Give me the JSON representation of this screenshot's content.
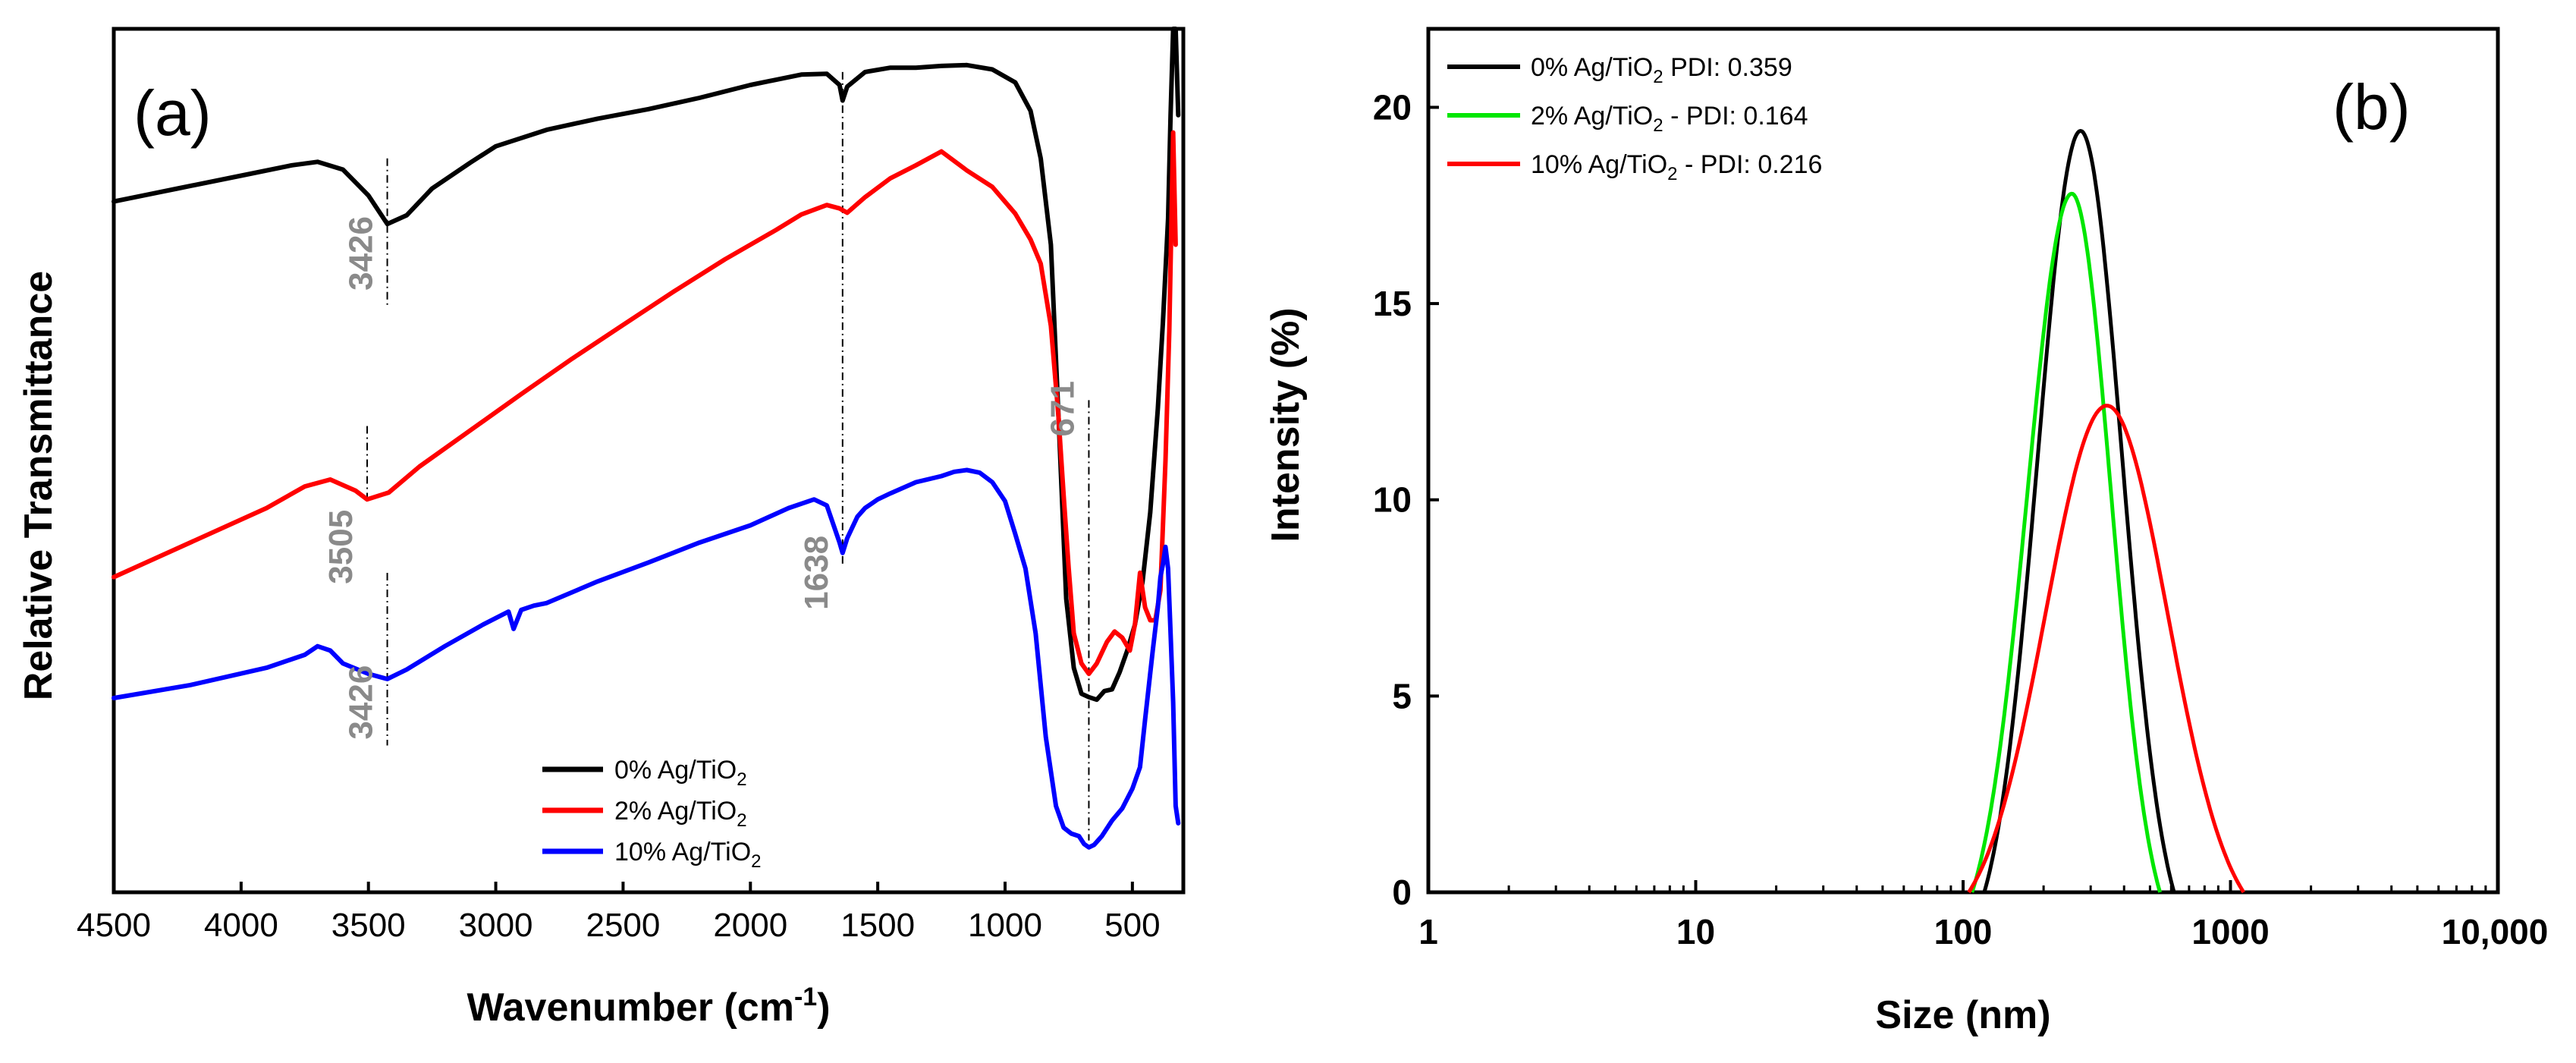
{
  "chart_data": [
    {
      "type": "line",
      "panel_label": "(a)",
      "xlabel_main": "Wavenumber (cm",
      "xlabel_sup": "-1",
      "xlabel_end": ")",
      "ylabel": "Relative Transmittance",
      "xlim": [
        4500,
        300
      ],
      "x_reversed": true,
      "ylim": [
        0,
        100
      ],
      "x_ticks": [
        4500,
        4000,
        3500,
        3000,
        2500,
        2000,
        1500,
        1000,
        500
      ],
      "x_tick_labels": [
        "4500",
        "4000",
        "3500",
        "3000",
        "2500",
        "2000",
        "1500",
        "1000",
        "500"
      ],
      "y_ticks_shown": false,
      "legend_position": "bottom-right",
      "annotations": [
        {
          "text": "3426",
          "x": 3426,
          "y": 74
        },
        {
          "text": "3505",
          "x": 3505,
          "y": 40
        },
        {
          "text": "3426",
          "x": 3426,
          "y": 22
        },
        {
          "text": "1638",
          "x": 1638,
          "y": 37
        },
        {
          "text": "671",
          "x": 671,
          "y": 56
        }
      ],
      "guide_lines": [
        {
          "x": 3426,
          "y_from": 85,
          "y_to": 68
        },
        {
          "x": 3505,
          "y_from": 54,
          "y_to": 45
        },
        {
          "x": 3426,
          "y_from": 37,
          "y_to": 17
        },
        {
          "x": 1638,
          "y_from": 95,
          "y_to": 38
        },
        {
          "x": 671,
          "y_from": 57,
          "y_to": 6
        }
      ],
      "series": [
        {
          "name": "0% Ag/TiO",
          "sub": "2",
          "color": "#000000",
          "x": [
            4500,
            4250,
            4000,
            3800,
            3700,
            3600,
            3500,
            3426,
            3350,
            3250,
            3100,
            3000,
            2800,
            2600,
            2400,
            2200,
            2000,
            1800,
            1700,
            1650,
            1638,
            1620,
            1550,
            1450,
            1350,
            1250,
            1150,
            1050,
            960,
            900,
            860,
            820,
            790,
            760,
            730,
            700,
            671,
            640,
            610,
            580,
            550,
            520,
            490,
            460,
            430,
            400,
            380,
            360,
            350,
            340,
            330,
            320
          ],
          "y": [
            80,
            81.5,
            83,
            84.2,
            84.6,
            83.7,
            80.7,
            77.4,
            78.4,
            81.5,
            84.5,
            86.4,
            88.3,
            89.6,
            90.7,
            92,
            93.5,
            94.7,
            94.8,
            93.5,
            91.7,
            93.3,
            95,
            95.5,
            95.5,
            95.7,
            95.8,
            95.3,
            93.8,
            90.5,
            85,
            75,
            55,
            34,
            26,
            23,
            22.6,
            22.3,
            23.3,
            23.5,
            25.5,
            28,
            31,
            36,
            44,
            56,
            66,
            78,
            90,
            100,
            100,
            90
          ]
        },
        {
          "name": "2% Ag/TiO",
          "sub": "2",
          "color": "#ff0000",
          "x": [
            4500,
            4200,
            3900,
            3750,
            3650,
            3550,
            3505,
            3420,
            3300,
            3100,
            2900,
            2700,
            2500,
            2300,
            2100,
            1900,
            1800,
            1700,
            1650,
            1638,
            1620,
            1550,
            1450,
            1350,
            1250,
            1150,
            1050,
            960,
            900,
            860,
            820,
            790,
            770,
            750,
            730,
            700,
            671,
            640,
            600,
            570,
            540,
            510,
            490,
            470,
            450,
            430,
            410,
            390,
            370,
            355,
            340,
            330
          ],
          "y": [
            36.5,
            40.5,
            44.5,
            47,
            47.8,
            46.5,
            45.5,
            46.3,
            49.3,
            53.5,
            57.7,
            61.8,
            65.7,
            69.6,
            73.3,
            76.7,
            78.5,
            79.6,
            79.2,
            79,
            78.7,
            80.5,
            82.7,
            84.2,
            85.8,
            83.6,
            81.7,
            78.6,
            75.6,
            72.8,
            65.6,
            55,
            46,
            37.5,
            30,
            26.5,
            25.3,
            26.5,
            29,
            30.2,
            29.5,
            28,
            31,
            37,
            33,
            31.5,
            31.5,
            35,
            50,
            65,
            88,
            75
          ]
        },
        {
          "name": "10% Ag/TiO",
          "sub": "2",
          "color": "#0000ff",
          "x": [
            4500,
            4200,
            3900,
            3750,
            3700,
            3650,
            3600,
            3500,
            3426,
            3350,
            3200,
            3050,
            2950,
            2930,
            2900,
            2850,
            2800,
            2600,
            2400,
            2200,
            2000,
            1850,
            1750,
            1700,
            1650,
            1638,
            1620,
            1580,
            1550,
            1500,
            1450,
            1350,
            1250,
            1200,
            1150,
            1100,
            1050,
            1000,
            960,
            920,
            880,
            840,
            800,
            770,
            740,
            710,
            690,
            671,
            650,
            620,
            580,
            540,
            500,
            470,
            450,
            420,
            400,
            390,
            380,
            370,
            360,
            350,
            340,
            330,
            320
          ],
          "y": [
            22.5,
            24,
            26,
            27.5,
            28.5,
            28,
            26.5,
            25.3,
            24.7,
            25.8,
            28.5,
            31,
            32.5,
            30.5,
            32.7,
            33.2,
            33.5,
            36,
            38.2,
            40.5,
            42.5,
            44.5,
            45.5,
            44.8,
            40.5,
            39.3,
            41,
            43.5,
            44.5,
            45.5,
            46.2,
            47.5,
            48.2,
            48.7,
            48.9,
            48.6,
            47.5,
            45.3,
            41.5,
            37.5,
            30,
            18,
            10,
            7.5,
            6.8,
            6.5,
            5.6,
            5.2,
            5.5,
            6.5,
            8.3,
            9.7,
            12,
            14.5,
            20,
            28,
            33,
            36.5,
            38,
            40,
            37.5,
            30,
            22,
            10,
            8
          ]
        }
      ]
    },
    {
      "type": "line",
      "panel_label": "(b)",
      "xlabel": "Size (nm)",
      "ylabel": "Intensity (%)",
      "x_scale": "log",
      "xlim": [
        1,
        10000
      ],
      "ylim": [
        0,
        22
      ],
      "x_ticks": [
        1,
        10,
        100,
        1000,
        10000
      ],
      "x_tick_labels": [
        "1",
        "10",
        "100",
        "1000",
        "10,000"
      ],
      "y_ticks": [
        0,
        5,
        10,
        15,
        20
      ],
      "y_tick_labels": [
        "0",
        "5",
        "10",
        "15",
        "20"
      ],
      "legend_position": "top-left",
      "series": [
        {
          "legend_main": "0% Ag/TiO",
          "legend_sub": "2",
          "legend_tail": " PDI: 0.359",
          "color": "#000000",
          "peak_size_nm": 275,
          "peak_intensity": 19.4,
          "min_size_nm": 120,
          "max_size_nm": 615
        },
        {
          "legend_main": "2% Ag/TiO",
          "legend_sub": "2",
          "legend_tail": " - PDI: 0.164",
          "color": "#00e600",
          "peak_size_nm": 255,
          "peak_intensity": 17.8,
          "min_size_nm": 108,
          "max_size_nm": 545
        },
        {
          "legend_main": "10% Ag/TiO",
          "legend_sub": "2",
          "legend_tail": " - PDI: 0.216",
          "color": "#ff0000",
          "peak_size_nm": 345,
          "peak_intensity": 12.4,
          "min_size_nm": 105,
          "max_size_nm": 1120
        }
      ]
    }
  ]
}
